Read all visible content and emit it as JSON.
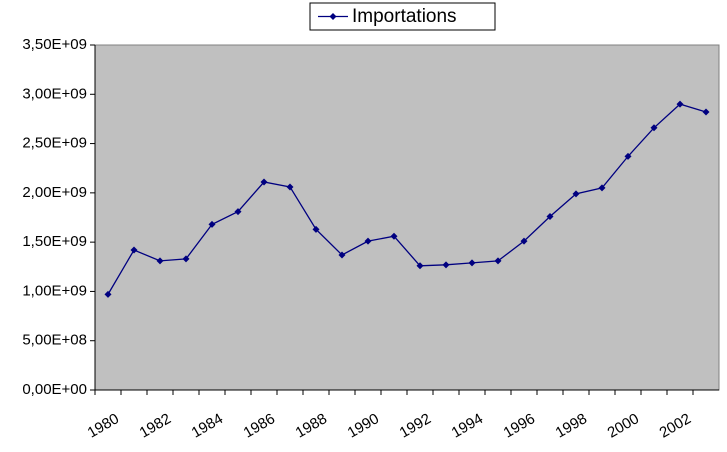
{
  "chart_data": {
    "type": "line",
    "categories": [
      "1980",
      null,
      "1982",
      null,
      "1984",
      null,
      "1986",
      null,
      "1988",
      null,
      "1990",
      null,
      "1992",
      null,
      "1994",
      null,
      "1996",
      null,
      "1998",
      null,
      "2000",
      null,
      "2002",
      null
    ],
    "series": [
      {
        "name": "Importations",
        "color": "#000080",
        "values": [
          970000000,
          1420000000,
          1310000000,
          1330000000,
          1680000000,
          1810000000,
          2110000000,
          2060000000,
          1630000000,
          1370000000,
          1510000000,
          1560000000,
          1260000000,
          1270000000,
          1290000000,
          1310000000,
          1510000000,
          1760000000,
          1990000000,
          2050000000,
          2370000000,
          2660000000,
          2900000000,
          2820000000
        ]
      }
    ],
    "ylim": [
      0,
      3500000000
    ],
    "yticks": [
      {
        "value": 0,
        "label": "0,00E+00"
      },
      {
        "value": 500000000,
        "label": "5,00E+08"
      },
      {
        "value": 1000000000,
        "label": "1,00E+09"
      },
      {
        "value": 1500000000,
        "label": "1,50E+09"
      },
      {
        "value": 2000000000,
        "label": "2,00E+09"
      },
      {
        "value": 2500000000,
        "label": "2,50E+09"
      },
      {
        "value": 3000000000,
        "label": "3,00E+09"
      },
      {
        "value": 3500000000,
        "label": "3,50E+09"
      }
    ],
    "legend": "top"
  }
}
